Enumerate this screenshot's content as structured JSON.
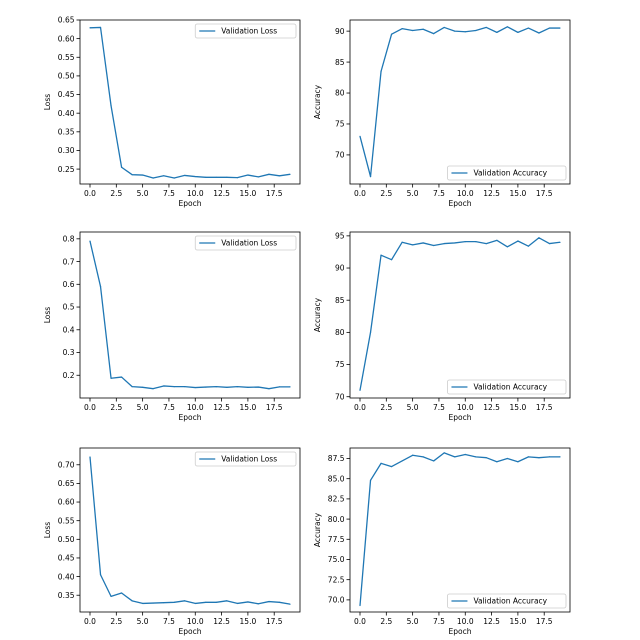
{
  "chart_data": [
    {
      "type": "line",
      "xlabel": "Epoch",
      "ylabel": "Loss",
      "xlim": [
        -0.95,
        19.95
      ],
      "ylim": [
        0.21,
        0.65
      ],
      "xticks": [
        0.0,
        2.5,
        5.0,
        7.5,
        10.0,
        12.5,
        15.0,
        17.5
      ],
      "xtick_labels": [
        "0.0",
        "2.5",
        "5.0",
        "7.5",
        "10.0",
        "12.5",
        "15.0",
        "17.5"
      ],
      "yticks": [
        0.25,
        0.3,
        0.35,
        0.4,
        0.45,
        0.5,
        0.55,
        0.6,
        0.65
      ],
      "ytick_labels": [
        "0.25",
        "0.30",
        "0.35",
        "0.40",
        "0.45",
        "0.50",
        "0.55",
        "0.60",
        "0.65"
      ],
      "legend": "upper-right",
      "color": "#1f77b4",
      "series": [
        {
          "name": "Validation Loss",
          "x": [
            0,
            1,
            2,
            3,
            4,
            5,
            6,
            7,
            8,
            9,
            10,
            11,
            12,
            13,
            14,
            15,
            16,
            17,
            18,
            19
          ],
          "values": [
            0.629,
            0.63,
            0.42,
            0.255,
            0.235,
            0.234,
            0.226,
            0.232,
            0.226,
            0.233,
            0.23,
            0.228,
            0.228,
            0.228,
            0.227,
            0.234,
            0.229,
            0.236,
            0.232,
            0.236
          ]
        }
      ]
    },
    {
      "type": "line",
      "xlabel": "Epoch",
      "ylabel": "Accuracy",
      "xlim": [
        -0.95,
        19.95
      ],
      "ylim": [
        65.3,
        91.8
      ],
      "xticks": [
        0.0,
        2.5,
        5.0,
        7.5,
        10.0,
        12.5,
        15.0,
        17.5
      ],
      "xtick_labels": [
        "0.0",
        "2.5",
        "5.0",
        "7.5",
        "10.0",
        "12.5",
        "15.0",
        "17.5"
      ],
      "yticks": [
        70,
        75,
        80,
        85,
        90
      ],
      "ytick_labels": [
        "70",
        "75",
        "80",
        "85",
        "90"
      ],
      "legend": "lower-right",
      "color": "#1f77b4",
      "series": [
        {
          "name": "Validation Accuracy",
          "x": [
            0,
            1,
            2,
            3,
            4,
            5,
            6,
            7,
            8,
            9,
            10,
            11,
            12,
            13,
            14,
            15,
            16,
            17,
            18,
            19
          ],
          "values": [
            73.0,
            66.5,
            83.5,
            89.5,
            90.4,
            90.1,
            90.3,
            89.6,
            90.6,
            90.0,
            89.9,
            90.1,
            90.6,
            89.8,
            90.7,
            89.8,
            90.5,
            89.7,
            90.5,
            90.5
          ]
        }
      ]
    },
    {
      "type": "line",
      "xlabel": "Epoch",
      "ylabel": "Loss",
      "xlim": [
        -0.95,
        19.95
      ],
      "ylim": [
        0.1,
        0.83
      ],
      "xticks": [
        0.0,
        2.5,
        5.0,
        7.5,
        10.0,
        12.5,
        15.0,
        17.5
      ],
      "xtick_labels": [
        "0.0",
        "2.5",
        "5.0",
        "7.5",
        "10.0",
        "12.5",
        "15.0",
        "17.5"
      ],
      "yticks": [
        0.2,
        0.3,
        0.4,
        0.5,
        0.6,
        0.7,
        0.8
      ],
      "ytick_labels": [
        "0.2",
        "0.3",
        "0.4",
        "0.5",
        "0.6",
        "0.7",
        "0.8"
      ],
      "legend": "upper-right",
      "color": "#1f77b4",
      "series": [
        {
          "name": "Validation Loss",
          "x": [
            0,
            1,
            2,
            3,
            4,
            5,
            6,
            7,
            8,
            9,
            10,
            11,
            12,
            13,
            14,
            15,
            16,
            17,
            18,
            19
          ],
          "values": [
            0.79,
            0.59,
            0.187,
            0.192,
            0.15,
            0.147,
            0.141,
            0.153,
            0.15,
            0.15,
            0.146,
            0.148,
            0.15,
            0.147,
            0.15,
            0.147,
            0.148,
            0.141,
            0.149,
            0.149
          ]
        }
      ]
    },
    {
      "type": "line",
      "xlabel": "Epoch",
      "ylabel": "Accuracy",
      "xlim": [
        -0.95,
        19.95
      ],
      "ylim": [
        69.8,
        95.6
      ],
      "xticks": [
        0.0,
        2.5,
        5.0,
        7.5,
        10.0,
        12.5,
        15.0,
        17.5
      ],
      "xtick_labels": [
        "0.0",
        "2.5",
        "5.0",
        "7.5",
        "10.0",
        "12.5",
        "15.0",
        "17.5"
      ],
      "yticks": [
        70,
        75,
        80,
        85,
        90,
        95
      ],
      "ytick_labels": [
        "70",
        "75",
        "80",
        "85",
        "90",
        "95"
      ],
      "legend": "lower-right",
      "color": "#1f77b4",
      "series": [
        {
          "name": "Validation Accuracy",
          "x": [
            0,
            1,
            2,
            3,
            4,
            5,
            6,
            7,
            8,
            9,
            10,
            11,
            12,
            13,
            14,
            15,
            16,
            17,
            18,
            19
          ],
          "values": [
            71.0,
            80.0,
            92.0,
            91.3,
            94.0,
            93.6,
            93.9,
            93.5,
            93.8,
            93.9,
            94.1,
            94.1,
            93.8,
            94.3,
            93.3,
            94.2,
            93.4,
            94.7,
            93.8,
            94.0
          ]
        }
      ]
    },
    {
      "type": "line",
      "xlabel": "Epoch",
      "ylabel": "Loss",
      "xlim": [
        -0.95,
        19.95
      ],
      "ylim": [
        0.305,
        0.745
      ],
      "xticks": [
        0.0,
        2.5,
        5.0,
        7.5,
        10.0,
        12.5,
        15.0,
        17.5
      ],
      "xtick_labels": [
        "0.0",
        "2.5",
        "5.0",
        "7.5",
        "10.0",
        "12.5",
        "15.0",
        "17.5"
      ],
      "yticks": [
        0.35,
        0.4,
        0.45,
        0.5,
        0.55,
        0.6,
        0.65,
        0.7
      ],
      "ytick_labels": [
        "0.35",
        "0.40",
        "0.45",
        "0.50",
        "0.55",
        "0.60",
        "0.65",
        "0.70"
      ],
      "legend": "upper-right",
      "color": "#1f77b4",
      "series": [
        {
          "name": "Validation Loss",
          "x": [
            0,
            1,
            2,
            3,
            4,
            5,
            6,
            7,
            8,
            9,
            10,
            11,
            12,
            13,
            14,
            15,
            16,
            17,
            18,
            19
          ],
          "values": [
            0.721,
            0.405,
            0.347,
            0.356,
            0.335,
            0.328,
            0.329,
            0.33,
            0.331,
            0.335,
            0.328,
            0.331,
            0.331,
            0.335,
            0.328,
            0.332,
            0.327,
            0.333,
            0.331,
            0.326
          ]
        }
      ]
    },
    {
      "type": "line",
      "xlabel": "Epoch",
      "ylabel": "Accuracy",
      "xlim": [
        -0.95,
        19.95
      ],
      "ylim": [
        68.5,
        88.8
      ],
      "xticks": [
        0.0,
        2.5,
        5.0,
        7.5,
        10.0,
        12.5,
        15.0,
        17.5
      ],
      "xtick_labels": [
        "0.0",
        "2.5",
        "5.0",
        "7.5",
        "10.0",
        "12.5",
        "15.0",
        "17.5"
      ],
      "yticks": [
        70.0,
        72.5,
        75.0,
        77.5,
        80.0,
        82.5,
        85.0,
        87.5
      ],
      "ytick_labels": [
        "70.0",
        "72.5",
        "75.0",
        "77.5",
        "80.0",
        "82.5",
        "85.0",
        "87.5"
      ],
      "legend": "lower-right",
      "color": "#1f77b4",
      "series": [
        {
          "name": "Validation Accuracy",
          "x": [
            0,
            1,
            2,
            3,
            4,
            5,
            6,
            7,
            8,
            9,
            10,
            11,
            12,
            13,
            14,
            15,
            16,
            17,
            18,
            19
          ],
          "values": [
            69.3,
            84.8,
            86.9,
            86.5,
            87.2,
            87.9,
            87.7,
            87.2,
            88.2,
            87.7,
            88.0,
            87.7,
            87.6,
            87.1,
            87.5,
            87.1,
            87.7,
            87.6,
            87.7,
            87.7
          ]
        }
      ]
    }
  ]
}
